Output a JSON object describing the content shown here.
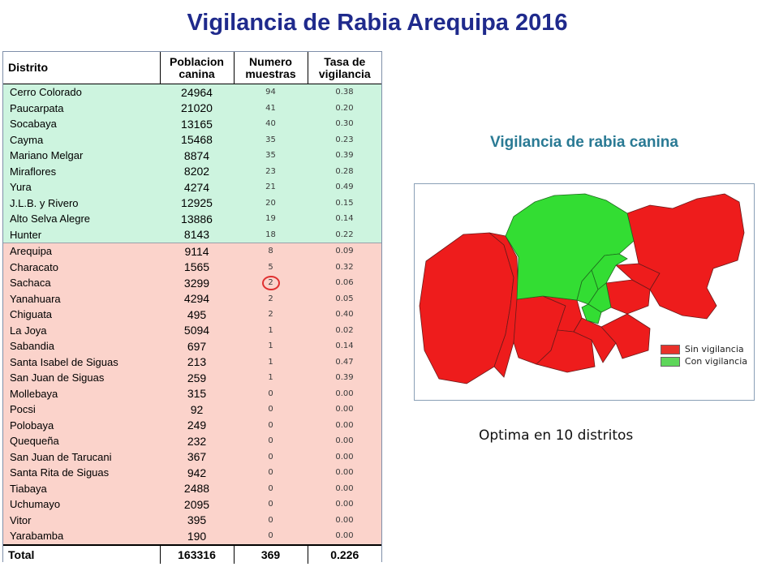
{
  "title": "Vigilancia de Rabia Arequipa 2016",
  "table": {
    "headers": {
      "distrito": "Distrito",
      "poblacion": [
        "Poblacion",
        "canina"
      ],
      "muestras": [
        "Numero",
        "muestras"
      ],
      "tasa": [
        "Tasa de",
        "vigilancia"
      ]
    },
    "rows": [
      {
        "distrito": "Cerro Colorado",
        "poblacion": "24964",
        "muestras": "94",
        "tasa": "0.38",
        "group": "green"
      },
      {
        "distrito": "Paucarpata",
        "poblacion": "21020",
        "muestras": "41",
        "tasa": "0.20",
        "group": "green"
      },
      {
        "distrito": "Socabaya",
        "poblacion": "13165",
        "muestras": "40",
        "tasa": "0.30",
        "group": "green"
      },
      {
        "distrito": "Cayma",
        "poblacion": "15468",
        "muestras": "35",
        "tasa": "0.23",
        "group": "green"
      },
      {
        "distrito": "Mariano Melgar",
        "poblacion": "8874",
        "muestras": "35",
        "tasa": "0.39",
        "group": "green"
      },
      {
        "distrito": "Miraflores",
        "poblacion": "8202",
        "muestras": "23",
        "tasa": "0.28",
        "group": "green"
      },
      {
        "distrito": "Yura",
        "poblacion": "4274",
        "muestras": "21",
        "tasa": "0.49",
        "group": "green"
      },
      {
        "distrito": "J.L.B. y Rivero",
        "poblacion": "12925",
        "muestras": "20",
        "tasa": "0.15",
        "group": "green"
      },
      {
        "distrito": "Alto Selva Alegre",
        "poblacion": "13886",
        "muestras": "19",
        "tasa": "0.14",
        "group": "green"
      },
      {
        "distrito": "Hunter",
        "poblacion": "8143",
        "muestras": "18",
        "tasa": "0.22",
        "group": "green"
      },
      {
        "distrito": "Arequipa",
        "poblacion": "9114",
        "muestras": "8",
        "tasa": "0.09",
        "group": "pink"
      },
      {
        "distrito": "Characato",
        "poblacion": "1565",
        "muestras": "5",
        "tasa": "0.32",
        "group": "pink"
      },
      {
        "distrito": "Sachaca",
        "poblacion": "3299",
        "muestras": "2",
        "tasa": "0.06",
        "group": "pink",
        "circled": true
      },
      {
        "distrito": "Yanahuara",
        "poblacion": "4294",
        "muestras": "2",
        "tasa": "0.05",
        "group": "pink"
      },
      {
        "distrito": "Chiguata",
        "poblacion": "495",
        "muestras": "2",
        "tasa": "0.40",
        "group": "pink"
      },
      {
        "distrito": "La Joya",
        "poblacion": "5094",
        "muestras": "1",
        "tasa": "0.02",
        "group": "pink"
      },
      {
        "distrito": "Sabandia",
        "poblacion": "697",
        "muestras": "1",
        "tasa": "0.14",
        "group": "pink"
      },
      {
        "distrito": "Santa Isabel de Siguas",
        "poblacion": "213",
        "muestras": "1",
        "tasa": "0.47",
        "group": "pink"
      },
      {
        "distrito": "San Juan de Siguas",
        "poblacion": "259",
        "muestras": "1",
        "tasa": "0.39",
        "group": "pink"
      },
      {
        "distrito": "Mollebaya",
        "poblacion": "315",
        "muestras": "0",
        "tasa": "0.00",
        "group": "pink"
      },
      {
        "distrito": "Pocsi",
        "poblacion": "92",
        "muestras": "0",
        "tasa": "0.00",
        "group": "pink"
      },
      {
        "distrito": "Polobaya",
        "poblacion": "249",
        "muestras": "0",
        "tasa": "0.00",
        "group": "pink"
      },
      {
        "distrito": "Quequeña",
        "poblacion": "232",
        "muestras": "0",
        "tasa": "0.00",
        "group": "pink"
      },
      {
        "distrito": "San Juan de Tarucani",
        "poblacion": "367",
        "muestras": "0",
        "tasa": "0.00",
        "group": "pink"
      },
      {
        "distrito": "Santa Rita de Siguas",
        "poblacion": "942",
        "muestras": "0",
        "tasa": "0.00",
        "group": "pink"
      },
      {
        "distrito": "Tiabaya",
        "poblacion": "2488",
        "muestras": "0",
        "tasa": "0.00",
        "group": "pink"
      },
      {
        "distrito": "Uchumayo",
        "poblacion": "2095",
        "muestras": "0",
        "tasa": "0.00",
        "group": "pink"
      },
      {
        "distrito": "Vitor",
        "poblacion": "395",
        "muestras": "0",
        "tasa": "0.00",
        "group": "pink"
      },
      {
        "distrito": "Yarabamba",
        "poblacion": "190",
        "muestras": "0",
        "tasa": "0.00",
        "group": "pink"
      }
    ],
    "total": {
      "label": "Total",
      "poblacion": "163316",
      "muestras": "369",
      "tasa": "0.226"
    }
  },
  "map": {
    "title": "Vigilancia de rabia canina",
    "legend": [
      {
        "label": "Sin vigilancia",
        "color": "#e8312a"
      },
      {
        "label": "Con vigilancia",
        "color": "#5ed65a"
      }
    ],
    "colors": {
      "sin": "#ee1c1c",
      "con": "#33dd33",
      "stroke": "#6a1a1a"
    }
  },
  "caption": "Optima en 10 distritos",
  "colors": {
    "title": "#1f2a8c",
    "map_title": "#2a7a94",
    "green_row": "#cdf4df",
    "pink_row": "#fbd3cb"
  }
}
